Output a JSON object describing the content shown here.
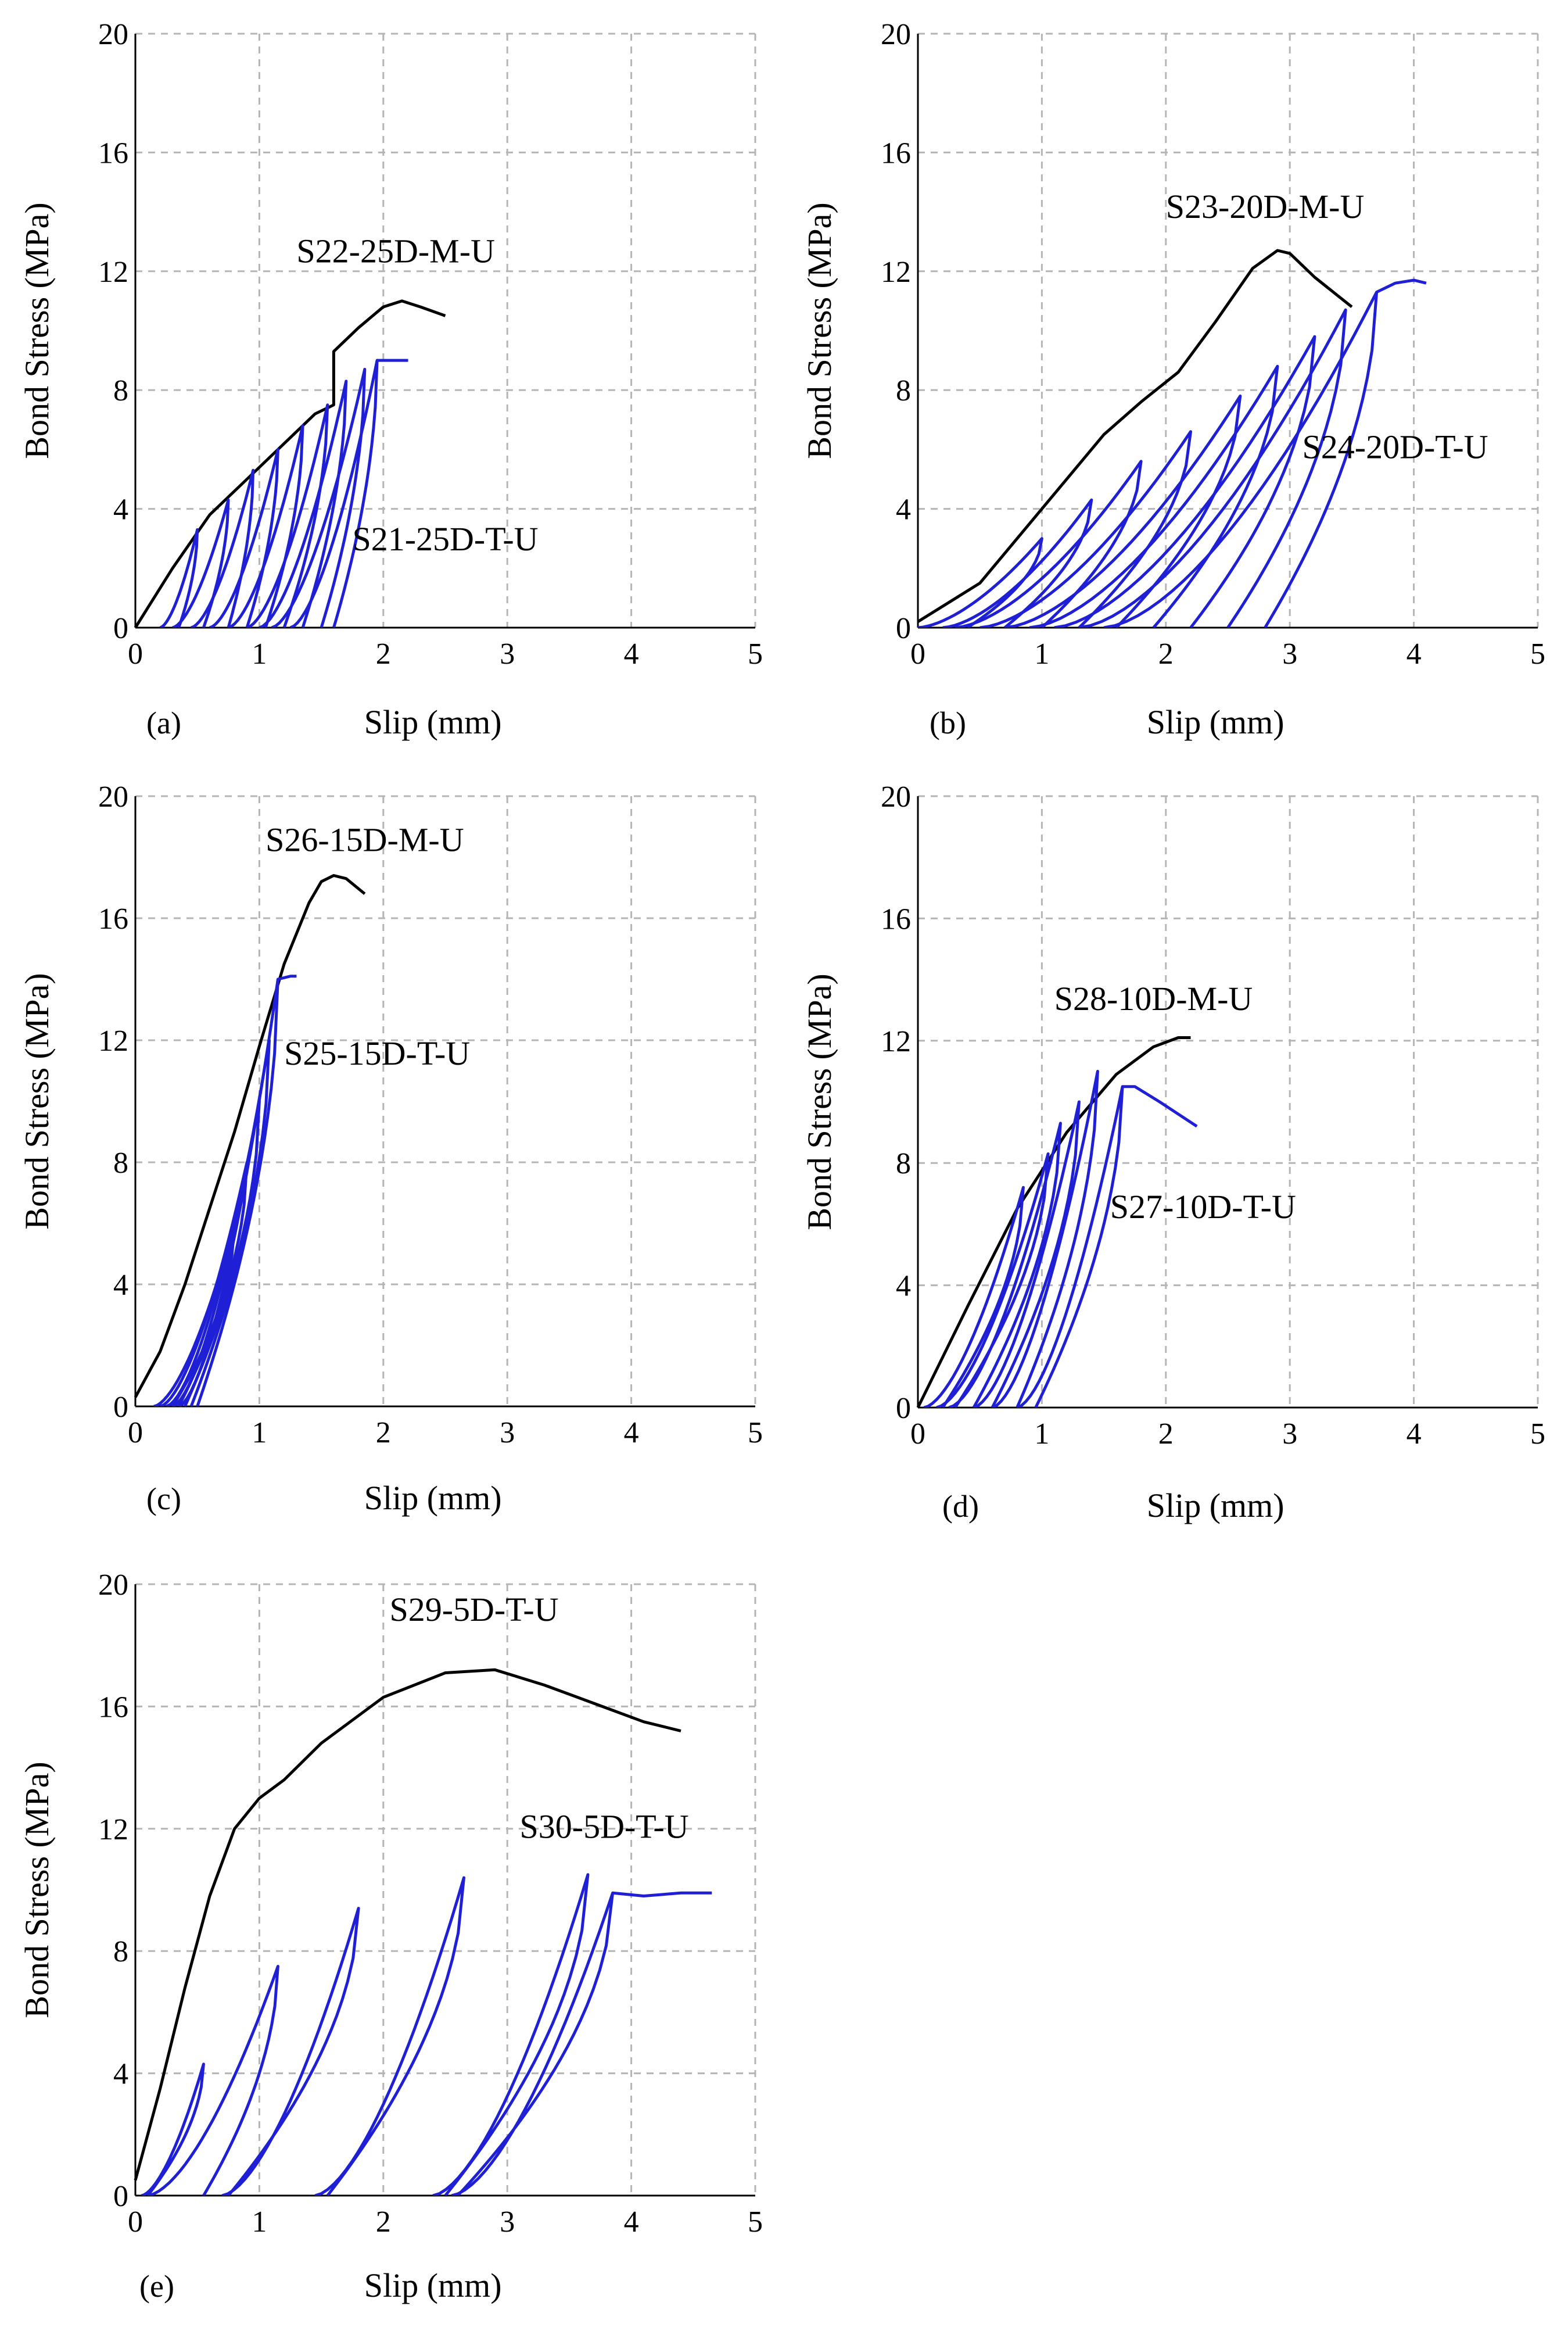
{
  "figure": {
    "x_label": "Slip (mm)",
    "y_label": "Bond Stress (MPa)",
    "x_ticks": [
      "0",
      "1",
      "2",
      "3",
      "4",
      "5"
    ],
    "y_ticks": [
      "0",
      "4",
      "8",
      "12",
      "16",
      "20"
    ]
  },
  "colors": {
    "monotonic": "#000000",
    "cyclic": "#1f1fd6",
    "grid": "#b5b5b5"
  },
  "chart_data": [
    {
      "id": "a",
      "panel_label": "(a)",
      "type": "line",
      "xlabel": "Slip (mm)",
      "ylabel": "Bond Stress (MPa)",
      "xlim": [
        0,
        5
      ],
      "ylim": [
        0,
        20
      ],
      "grid": true,
      "series": [
        {
          "name": "S22-25D-M-U",
          "kind": "monotonic",
          "x": [
            0,
            0.3,
            0.6,
            0.9,
            1.2,
            1.45,
            1.6,
            1.6,
            1.8,
            2.0,
            2.15,
            2.3,
            2.5
          ],
          "y": [
            0,
            2,
            3.8,
            5,
            6.2,
            7.2,
            7.5,
            9.3,
            10.1,
            10.8,
            11.0,
            10.8,
            10.5
          ]
        },
        {
          "name": "S21-25D-T-U",
          "kind": "cyclic",
          "cycles": [
            {
              "start": 0.2,
              "peak_x": 0.5,
              "peak_y": 3.3,
              "end": 0.35
            },
            {
              "start": 0.3,
              "peak_x": 0.75,
              "peak_y": 4.3,
              "end": 0.55
            },
            {
              "start": 0.45,
              "peak_x": 0.95,
              "peak_y": 5.3,
              "end": 0.75
            },
            {
              "start": 0.6,
              "peak_x": 1.15,
              "peak_y": 6.0,
              "end": 0.9
            },
            {
              "start": 0.75,
              "peak_x": 1.35,
              "peak_y": 6.8,
              "end": 1.05
            },
            {
              "start": 0.9,
              "peak_x": 1.55,
              "peak_y": 7.5,
              "end": 1.2
            },
            {
              "start": 1.0,
              "peak_x": 1.7,
              "peak_y": 8.3,
              "end": 1.35
            },
            {
              "start": 1.1,
              "peak_x": 1.85,
              "peak_y": 8.7,
              "end": 1.5
            },
            {
              "start": 1.25,
              "peak_x": 1.95,
              "peak_y": 9.0,
              "end": 1.6
            }
          ],
          "tail_x": [
            1.95,
            2.05,
            2.2
          ],
          "tail_y": [
            9.0,
            9.0,
            9.0
          ]
        }
      ],
      "annotations": [
        {
          "text": "S22-25D-M-U",
          "x": 1.3,
          "y": 12.3
        },
        {
          "text": "S21-25D-T-U",
          "x": 1.75,
          "y": 2.6
        }
      ]
    },
    {
      "id": "b",
      "panel_label": "(b)",
      "type": "line",
      "xlabel": "Slip (mm)",
      "ylabel": "Bond Stress (MPa)",
      "xlim": [
        0,
        5
      ],
      "ylim": [
        0,
        20
      ],
      "grid": true,
      "series": [
        {
          "name": "S23-20D-M-U",
          "kind": "monotonic",
          "x": [
            0,
            0.5,
            1.0,
            1.5,
            1.8,
            2.1,
            2.4,
            2.7,
            2.9,
            3.0,
            3.2,
            3.5
          ],
          "y": [
            0.2,
            1.5,
            4.0,
            6.5,
            7.6,
            8.6,
            10.3,
            12.1,
            12.7,
            12.6,
            11.8,
            10.8
          ]
        },
        {
          "name": "S24-20D-T-U",
          "kind": "cyclic",
          "cycles": [
            {
              "start": 0.0,
              "peak_x": 1.0,
              "peak_y": 3.0,
              "end": 0.4
            },
            {
              "start": 0.2,
              "peak_x": 1.4,
              "peak_y": 4.3,
              "end": 0.7
            },
            {
              "start": 0.3,
              "peak_x": 1.8,
              "peak_y": 5.6,
              "end": 1.0
            },
            {
              "start": 0.5,
              "peak_x": 2.2,
              "peak_y": 6.6,
              "end": 1.3
            },
            {
              "start": 0.7,
              "peak_x": 2.6,
              "peak_y": 7.8,
              "end": 1.6
            },
            {
              "start": 0.9,
              "peak_x": 2.9,
              "peak_y": 8.8,
              "end": 1.9
            },
            {
              "start": 1.1,
              "peak_x": 3.2,
              "peak_y": 9.8,
              "end": 2.2
            },
            {
              "start": 1.3,
              "peak_x": 3.45,
              "peak_y": 10.7,
              "end": 2.5
            },
            {
              "start": 1.5,
              "peak_x": 3.7,
              "peak_y": 11.3,
              "end": 2.8
            }
          ],
          "tail_x": [
            3.7,
            3.85,
            4.0,
            4.1
          ],
          "tail_y": [
            11.3,
            11.6,
            11.7,
            11.6
          ]
        }
      ],
      "annotations": [
        {
          "text": "S23-20D-M-U",
          "x": 2.0,
          "y": 13.8
        },
        {
          "text": "S24-20D-T-U",
          "x": 3.1,
          "y": 5.7
        }
      ]
    },
    {
      "id": "c",
      "panel_label": "(c)",
      "type": "line",
      "xlabel": "Slip (mm)",
      "ylabel": "Bond Stress (MPa)",
      "xlim": [
        0,
        5
      ],
      "ylim": [
        0,
        20
      ],
      "grid": true,
      "series": [
        {
          "name": "S26-15D-M-U",
          "kind": "monotonic",
          "x": [
            0,
            0.2,
            0.4,
            0.6,
            0.8,
            1.0,
            1.2,
            1.4,
            1.5,
            1.6,
            1.7,
            1.85
          ],
          "y": [
            0.3,
            1.8,
            4.0,
            6.5,
            9.0,
            11.8,
            14.5,
            16.5,
            17.2,
            17.4,
            17.3,
            16.8
          ]
        },
        {
          "name": "S25-15D-T-U",
          "kind": "cyclic",
          "cycles": [
            {
              "start": 0.15,
              "peak_x": 0.8,
              "peak_y": 6.0,
              "end": 0.3
            },
            {
              "start": 0.2,
              "peak_x": 0.9,
              "peak_y": 8.0,
              "end": 0.35
            },
            {
              "start": 0.25,
              "peak_x": 1.0,
              "peak_y": 10.0,
              "end": 0.4
            },
            {
              "start": 0.3,
              "peak_x": 1.08,
              "peak_y": 12.0,
              "end": 0.45
            },
            {
              "start": 0.35,
              "peak_x": 1.15,
              "peak_y": 14.0,
              "end": 0.5
            }
          ],
          "tail_x": [
            1.15,
            1.25,
            1.3
          ],
          "tail_y": [
            14.0,
            14.1,
            14.1
          ]
        }
      ],
      "annotations": [
        {
          "text": "S26-15D-M-U",
          "x": 1.05,
          "y": 18.2
        },
        {
          "text": "S25-15D-T-U",
          "x": 1.2,
          "y": 11.2
        }
      ]
    },
    {
      "id": "d",
      "panel_label": "(d)",
      "type": "line",
      "xlabel": "Slip (mm)",
      "ylabel": "Bond Stress (MPa)",
      "xlim": [
        0,
        5
      ],
      "ylim": [
        0,
        20
      ],
      "grid": true,
      "series": [
        {
          "name": "S28-10D-M-U",
          "kind": "monotonic",
          "x": [
            0,
            0.4,
            0.8,
            1.2,
            1.6,
            1.9,
            2.1,
            2.2
          ],
          "y": [
            0,
            3.3,
            6.5,
            9.0,
            10.9,
            11.8,
            12.1,
            12.1
          ]
        },
        {
          "name": "S27-10D-T-U",
          "kind": "cyclic",
          "cycles": [
            {
              "start": 0.05,
              "peak_x": 0.85,
              "peak_y": 7.2,
              "end": 0.2
            },
            {
              "start": 0.15,
              "peak_x": 1.05,
              "peak_y": 8.3,
              "end": 0.3
            },
            {
              "start": 0.25,
              "peak_x": 1.15,
              "peak_y": 9.3,
              "end": 0.45
            },
            {
              "start": 0.45,
              "peak_x": 1.3,
              "peak_y": 10.0,
              "end": 0.6
            },
            {
              "start": 0.6,
              "peak_x": 1.45,
              "peak_y": 11.0,
              "end": 0.8
            },
            {
              "start": 0.8,
              "peak_x": 1.65,
              "peak_y": 10.5,
              "end": 0.95
            }
          ],
          "tail_x": [
            1.65,
            1.75,
            1.95,
            2.25
          ],
          "tail_y": [
            10.5,
            10.5,
            10.0,
            9.2
          ]
        }
      ],
      "annotations": [
        {
          "text": "S28-10D-M-U",
          "x": 1.1,
          "y": 13.0
        },
        {
          "text": "S27-10D-T-U",
          "x": 1.55,
          "y": 6.2
        }
      ]
    },
    {
      "id": "e",
      "panel_label": "(e)",
      "type": "line",
      "xlabel": "Slip (mm)",
      "ylabel": "Bond Stress (MPa)",
      "xlim": [
        0,
        5
      ],
      "ylim": [
        0,
        20
      ],
      "grid": true,
      "series": [
        {
          "name": "S29-5D-T-U",
          "kind": "monotonic",
          "x": [
            0,
            0.2,
            0.4,
            0.6,
            0.8,
            1.0,
            1.2,
            1.5,
            2.0,
            2.5,
            2.9,
            3.3,
            3.7,
            4.1,
            4.4
          ],
          "y": [
            0.5,
            3.5,
            6.8,
            9.8,
            12.0,
            13.0,
            13.6,
            14.8,
            16.3,
            17.1,
            17.2,
            16.7,
            16.1,
            15.5,
            15.2
          ]
        },
        {
          "name": "S30-5D-T-U",
          "kind": "cyclic",
          "cycles": [
            {
              "start": 0.05,
              "peak_x": 0.55,
              "peak_y": 4.3,
              "end": 0.1
            },
            {
              "start": 0.1,
              "peak_x": 1.15,
              "peak_y": 7.5,
              "end": 0.55
            },
            {
              "start": 0.7,
              "peak_x": 1.8,
              "peak_y": 9.4,
              "end": 0.75
            },
            {
              "start": 1.45,
              "peak_x": 2.65,
              "peak_y": 10.4,
              "end": 1.55
            },
            {
              "start": 2.4,
              "peak_x": 3.65,
              "peak_y": 10.5,
              "end": 2.5
            },
            {
              "start": 2.55,
              "peak_x": 3.85,
              "peak_y": 9.9,
              "end": 2.6
            }
          ],
          "tail_x": [
            3.85,
            4.1,
            4.4,
            4.65
          ],
          "tail_y": [
            9.9,
            9.8,
            9.9,
            9.9
          ]
        }
      ],
      "annotations": [
        {
          "text": "S29-5D-T-U",
          "x": 2.05,
          "y": 18.8
        },
        {
          "text": "S30-5D-T-U",
          "x": 3.1,
          "y": 11.7
        }
      ]
    }
  ]
}
